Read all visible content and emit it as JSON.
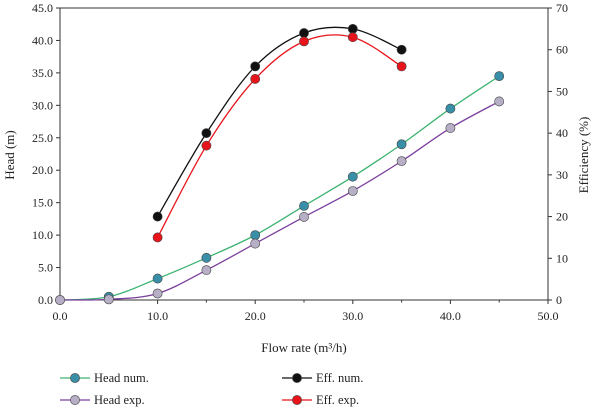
{
  "chart_data": {
    "type": "line",
    "xlabel": "Flow rate (m³/h)",
    "ylabel_left": "Head (m)",
    "ylabel_right": "Efficiency (%)",
    "xlim": [
      0,
      50
    ],
    "ylim_left": [
      0,
      45
    ],
    "ylim_right": [
      0,
      70
    ],
    "x_ticks": [
      "0.0",
      "10.0",
      "20.0",
      "30.0",
      "40.0",
      "50.0"
    ],
    "y_left_ticks": [
      "0.0",
      "5.0",
      "10.0",
      "15.0",
      "20.0",
      "25.0",
      "30.0",
      "35.0",
      "40.0",
      "45.0"
    ],
    "y_right_ticks": [
      "0",
      "10",
      "20",
      "30",
      "40",
      "50",
      "60",
      "70"
    ],
    "grid": false,
    "legend_position": "bottom",
    "series": [
      {
        "name": "Head num.",
        "axis": "left",
        "line_color": "#3cb371",
        "marker_color": "#3a8fa8",
        "x": [
          0,
          5,
          10,
          15,
          20,
          25,
          30,
          35,
          40,
          45
        ],
        "y": [
          0,
          0.5,
          3.3,
          6.5,
          10.0,
          14.5,
          19.0,
          24.0,
          29.5,
          34.5
        ]
      },
      {
        "name": "Head exp.",
        "axis": "left",
        "line_color": "#7b3f9e",
        "marker_color": "#b7afc6",
        "x": [
          0,
          5,
          10,
          15,
          20,
          25,
          30,
          35,
          40,
          45
        ],
        "y": [
          0,
          0.1,
          1.0,
          4.6,
          8.7,
          12.8,
          16.8,
          21.4,
          26.5,
          30.6
        ]
      },
      {
        "name": "Eff. num.",
        "axis": "right",
        "line_color": "#111111",
        "marker_color": "#111111",
        "x": [
          10,
          15,
          20,
          25,
          30,
          35
        ],
        "y": [
          20.0,
          40.0,
          56.0,
          64.0,
          65.0,
          60.0
        ]
      },
      {
        "name": "Eff. exp.",
        "axis": "right",
        "line_color": "#e8141b",
        "marker_color": "#e8141b",
        "x": [
          10,
          15,
          20,
          25,
          30,
          35
        ],
        "y": [
          15.0,
          37.0,
          53.0,
          62.0,
          63.0,
          56.0
        ]
      }
    ]
  }
}
